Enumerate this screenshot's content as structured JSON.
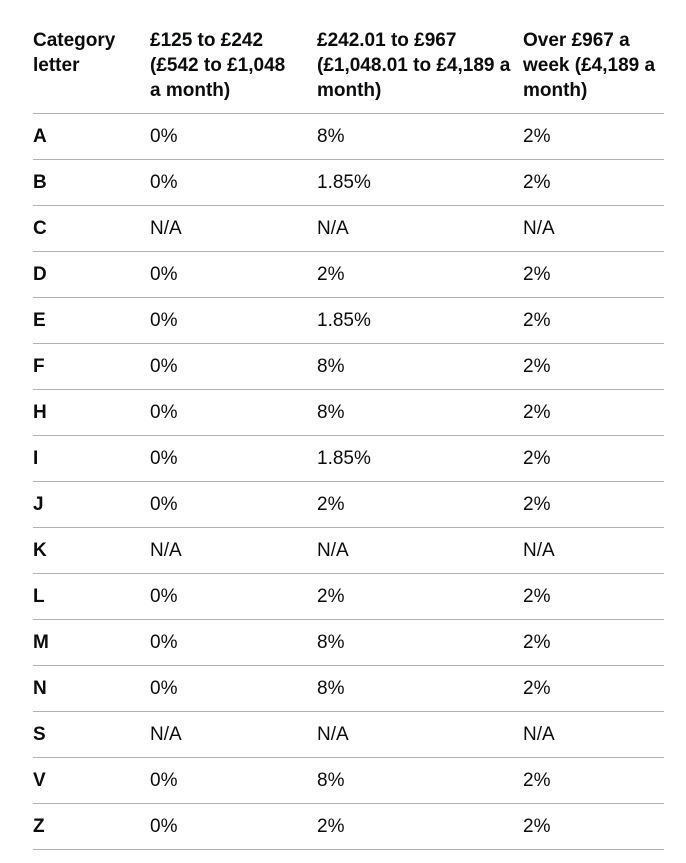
{
  "colors": {
    "text": "#0b0c0c",
    "border": "#b1b4b6",
    "background": "#ffffff"
  },
  "table": {
    "columns": [
      "Category letter",
      "£125 to £242 (£542 to £1,048 a month)",
      "£242.01 to £967 (£1,048.01 to £4,189 a month)",
      "Over £967 a week (£4,189 a month)"
    ],
    "rows": [
      {
        "letter": "A",
        "values": [
          "0%",
          "8%",
          "2%"
        ]
      },
      {
        "letter": "B",
        "values": [
          "0%",
          "1.85%",
          "2%"
        ]
      },
      {
        "letter": "C",
        "values": [
          "N/A",
          "N/A",
          "N/A"
        ]
      },
      {
        "letter": "D",
        "values": [
          "0%",
          "2%",
          "2%"
        ]
      },
      {
        "letter": "E",
        "values": [
          "0%",
          "1.85%",
          "2%"
        ]
      },
      {
        "letter": "F",
        "values": [
          "0%",
          "8%",
          "2%"
        ]
      },
      {
        "letter": "H",
        "values": [
          "0%",
          "8%",
          "2%"
        ]
      },
      {
        "letter": "I",
        "values": [
          "0%",
          "1.85%",
          "2%"
        ]
      },
      {
        "letter": "J",
        "values": [
          "0%",
          "2%",
          "2%"
        ]
      },
      {
        "letter": "K",
        "values": [
          "N/A",
          "N/A",
          "N/A"
        ]
      },
      {
        "letter": "L",
        "values": [
          "0%",
          "2%",
          "2%"
        ]
      },
      {
        "letter": "M",
        "values": [
          "0%",
          "8%",
          "2%"
        ]
      },
      {
        "letter": "N",
        "values": [
          "0%",
          "8%",
          "2%"
        ]
      },
      {
        "letter": "S",
        "values": [
          "N/A",
          "N/A",
          "N/A"
        ]
      },
      {
        "letter": "V",
        "values": [
          "0%",
          "8%",
          "2%"
        ]
      },
      {
        "letter": "Z",
        "values": [
          "0%",
          "2%",
          "2%"
        ]
      }
    ]
  }
}
